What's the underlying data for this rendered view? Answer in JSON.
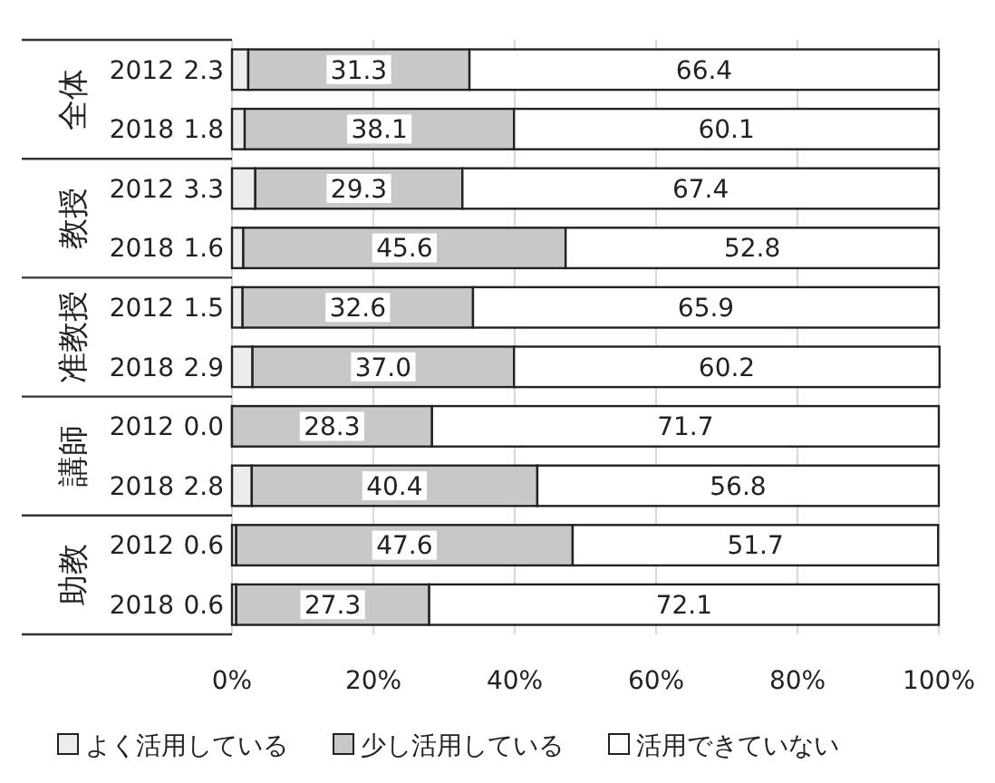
{
  "chart_data": {
    "type": "bar",
    "orientation": "horizontal",
    "stacked": true,
    "categories": [
      "2012",
      "2018",
      "2012",
      "2018",
      "2012",
      "2018",
      "2012",
      "2018",
      "2012",
      "2018"
    ],
    "annotations": [
      "全体",
      "教授",
      "准教授",
      "講師",
      "助教"
    ],
    "series": [
      {
        "name": "よく活用している",
        "color": "#ececec",
        "values": [
          2.3,
          1.8,
          3.3,
          1.6,
          1.5,
          2.9,
          0.0,
          2.8,
          0.6,
          0.6
        ],
        "value_labels": [
          "2.3",
          "1.8",
          "3.3",
          "1.6",
          "1.5",
          "2.9",
          "0.0",
          "2.8",
          "0.6",
          "0.6"
        ]
      },
      {
        "name": "少し活用している",
        "color": "#c8c8c8",
        "values": [
          31.3,
          38.1,
          29.3,
          45.6,
          32.6,
          37.0,
          28.3,
          40.4,
          47.6,
          27.3
        ],
        "value_labels": [
          "31.3",
          "38.1",
          "29.3",
          "45.6",
          "32.6",
          "37.0",
          "28.3",
          "40.4",
          "47.6",
          "27.3"
        ]
      },
      {
        "name": "活用できていない",
        "color": "#ffffff",
        "values": [
          66.4,
          60.1,
          67.4,
          52.8,
          65.9,
          60.2,
          71.7,
          56.8,
          51.7,
          72.1
        ],
        "value_labels": [
          "66.4",
          "60.1",
          "67.4",
          "52.8",
          "65.9",
          "60.2",
          "71.7",
          "56.8",
          "51.7",
          "72.1"
        ]
      }
    ],
    "xlim": [
      0,
      100
    ],
    "xticks": [
      {
        "value": 0,
        "label": "0%"
      },
      {
        "value": 20,
        "label": "20%"
      },
      {
        "value": 40,
        "label": "40%"
      },
      {
        "value": 60,
        "label": "60%"
      },
      {
        "value": 80,
        "label": "80%"
      },
      {
        "value": 100,
        "label": "100%"
      }
    ],
    "grid": "x",
    "legend": "bottom"
  }
}
